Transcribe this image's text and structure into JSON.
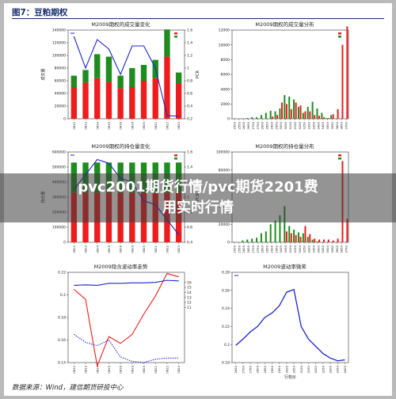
{
  "figure": {
    "title": "图7：豆粕期权",
    "source": "数据来源：Wind，建信期货研投中心"
  },
  "overlay": {
    "line1": "pvc2001期货行情/pvc期货2201费",
    "line2": "用实时行情"
  },
  "colors": {
    "call": "#ee1c1c",
    "put": "#1e8c1e",
    "line": "#1c27c8",
    "grid": "#dddddd",
    "text": "#222222"
  },
  "chart_data": [
    {
      "type": "bar",
      "title": "M2009期权的成交量变化",
      "ylabel": "成交量",
      "ylabel2": "PCR",
      "stacked": true,
      "categories": [
        "0812",
        "0813",
        "0814",
        "0815",
        "0816",
        "0819",
        "0820",
        "0821",
        "0822",
        "0823"
      ],
      "ylim": [
        0,
        140000
      ],
      "yticks": [
        0,
        20000,
        40000,
        60000,
        80000,
        100000,
        120000,
        140000
      ],
      "y2lim": [
        0.2,
        1.6
      ],
      "y2ticks": [
        0.2,
        0.4,
        0.6,
        0.8,
        1.0,
        1.2,
        1.4,
        1.6
      ],
      "series": [
        {
          "role": "call",
          "values": [
            50000,
            57000,
            64000,
            58000,
            48000,
            50000,
            60000,
            64000,
            98000,
            55000
          ]
        },
        {
          "role": "put",
          "values": [
            18000,
            20000,
            38000,
            40000,
            20000,
            30000,
            25000,
            29000,
            43000,
            18000
          ]
        },
        {
          "role": "pcr",
          "axis": "right",
          "values": [
            1.5,
            1.0,
            1.45,
            1.3,
            0.9,
            1.35,
            1.35,
            1.0,
            0.25,
            0.24
          ]
        }
      ]
    },
    {
      "type": "bar",
      "title": "M2009期权的成交量分布",
      "categories": [
        "2500",
        "2550",
        "2600",
        "2650",
        "2700",
        "2750",
        "2800",
        "2850",
        "2900",
        "2950",
        "3000",
        "3050",
        "3100",
        "3150",
        "3200",
        "3250",
        "3300",
        "3350",
        "3400",
        "3450",
        "3500",
        "3550",
        "3600",
        "3650",
        "3700"
      ],
      "ylim": [
        0,
        12000
      ],
      "yticks": [
        0,
        2000,
        4000,
        6000,
        8000,
        10000,
        12000
      ],
      "series": [
        {
          "role": "call",
          "values": [
            0,
            0,
            0,
            0,
            0,
            0,
            0,
            0,
            300,
            500,
            2200,
            2000,
            1300,
            2200,
            1800,
            1000,
            1000,
            500,
            400,
            200,
            100,
            600,
            1300,
            10000,
            12500
          ]
        },
        {
          "role": "put",
          "values": [
            0,
            0,
            0,
            100,
            200,
            200,
            500,
            800,
            1100,
            1000,
            1400,
            3200,
            3000,
            2600,
            1600,
            800,
            1600,
            2300,
            1400,
            800,
            100,
            500,
            0,
            0,
            0
          ]
        }
      ]
    },
    {
      "type": "bar",
      "title": "M2009期权的持仓量变化",
      "ylabel": "持仓量",
      "ylabel2": "PCR",
      "stacked": true,
      "categories": [
        "0812",
        "0813",
        "0814",
        "0815",
        "0816",
        "0819",
        "0820",
        "0821",
        "0822",
        "0823"
      ],
      "ylim": [
        0,
        600000
      ],
      "yticks": [
        0,
        100000,
        200000,
        300000,
        400000,
        500000,
        600000
      ],
      "y2lim": [
        0.4,
        1.6
      ],
      "y2ticks": [
        0.4,
        0.6,
        0.8,
        1.0,
        1.2,
        1.4,
        1.6
      ],
      "series": [
        {
          "role": "call",
          "values": [
            330000,
            330000,
            330000,
            330000,
            330000,
            330000,
            330000,
            330000,
            330000,
            330000
          ]
        },
        {
          "role": "put",
          "values": [
            200000,
            200000,
            200000,
            200000,
            200000,
            200000,
            200000,
            200000,
            200000,
            200000
          ]
        },
        {
          "role": "pcr",
          "axis": "right",
          "values": [
            1.1,
            1.3,
            1.5,
            1.45,
            1.25,
            1.2,
            0.95,
            0.9,
            0.7,
            0.5
          ]
        }
      ]
    },
    {
      "type": "bar",
      "title": "M2009期权的持仓量分布",
      "categories": [
        "2500",
        "2550",
        "2600",
        "2650",
        "2700",
        "2750",
        "2800",
        "2850",
        "2900",
        "2950",
        "3000",
        "3050",
        "3100",
        "3150",
        "3200",
        "3250",
        "3300",
        "3350",
        "3400",
        "3450",
        "3500",
        "3550",
        "3600",
        "3650",
        "3700"
      ],
      "ylim": [
        0,
        100000
      ],
      "yticks": [
        0,
        20000,
        40000,
        60000,
        80000,
        100000
      ],
      "series": [
        {
          "role": "call",
          "values": [
            0,
            0,
            0,
            0,
            0,
            0,
            0,
            0,
            0,
            0,
            0,
            12000,
            10000,
            8000,
            6000,
            18000,
            9000,
            4000,
            3000,
            3000,
            3000,
            2000,
            4000,
            90000,
            26000
          ]
        },
        {
          "role": "put",
          "values": [
            0,
            0,
            2000,
            3000,
            4000,
            5000,
            10000,
            12000,
            20000,
            24000,
            30000,
            40000,
            18000,
            14000,
            11000,
            10000,
            6000,
            3000,
            1000,
            0,
            0,
            0,
            0,
            0,
            0
          ]
        }
      ]
    },
    {
      "type": "line",
      "title": "M2009隐含波动率走势",
      "categories": [
        "0812",
        "0813",
        "0814",
        "0815",
        "0816",
        "0819",
        "0820",
        "0821",
        "0822",
        "0823"
      ],
      "ylim": [
        0.14,
        0.22
      ],
      "yticks": [
        0.14,
        0.16,
        0.18,
        0.2,
        0.22
      ],
      "y2lim": [
        0.0,
        18.0
      ],
      "y2ticks": [
        11.0,
        12.0,
        13.0,
        14.0,
        15.0,
        16.0
      ],
      "series": [
        {
          "role": "iv-call",
          "values": [
            0.205,
            0.196,
            0.137,
            0.163,
            0.157,
            0.165,
            0.183,
            0.199,
            0.219,
            0.216
          ]
        },
        {
          "role": "iv-put",
          "values": [
            0.165,
            0.158,
            0.155,
            0.16,
            0.145,
            0.141,
            0.14,
            0.143,
            0.144,
            0.144
          ]
        },
        {
          "role": "hv",
          "axis": "right",
          "values": [
            15.4,
            15.5,
            15.4,
            15.8,
            15.8,
            15.9,
            15.9,
            16.0,
            16.4,
            16.3
          ]
        }
      ]
    },
    {
      "type": "line",
      "title": "M2009波动率微笑",
      "xlabel": "行权价",
      "categories": [
        "2650",
        "2700",
        "2750",
        "2800",
        "2850",
        "2900",
        "2950",
        "3000",
        "3050",
        "3100",
        "3150",
        "3200",
        "3250",
        "3300",
        "3350",
        "3400"
      ],
      "ylim": [
        0.18,
        0.28
      ],
      "yticks": [
        0.18,
        0.2,
        0.22,
        0.24,
        0.26,
        0.28
      ],
      "series": [
        {
          "role": "smile",
          "values": [
            0.199,
            0.206,
            0.214,
            0.22,
            0.23,
            0.235,
            0.243,
            0.258,
            0.261,
            0.22,
            0.206,
            0.198,
            0.19,
            0.185,
            0.182,
            0.183
          ]
        }
      ]
    }
  ]
}
